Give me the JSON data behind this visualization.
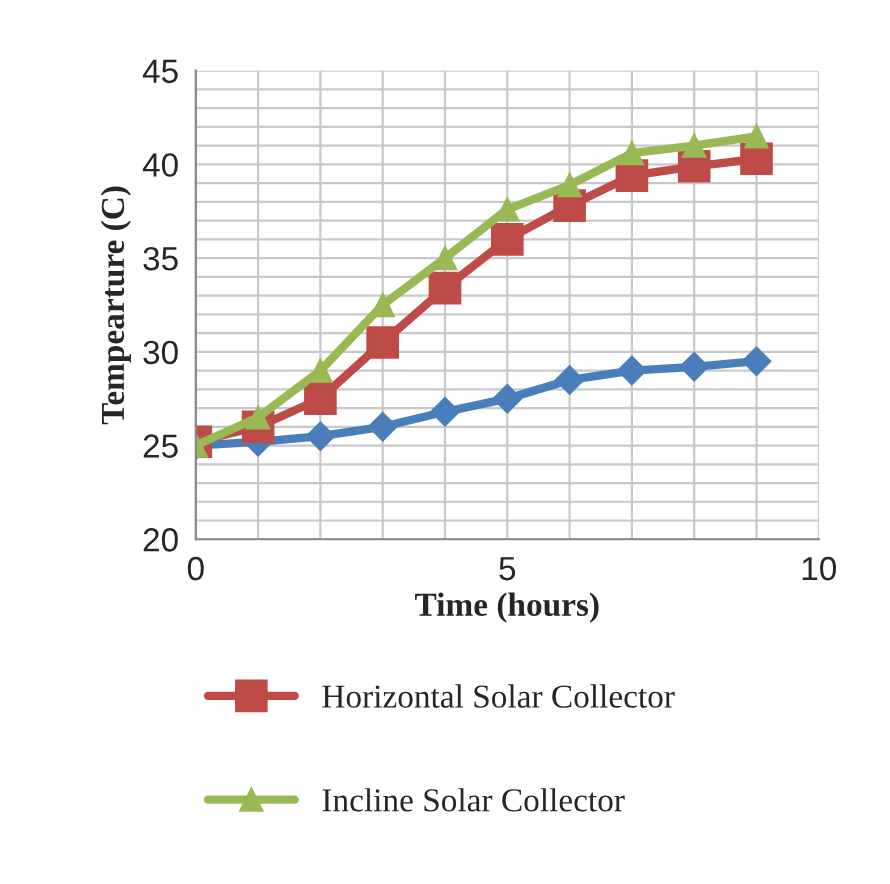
{
  "chart_data": {
    "type": "line",
    "xlabel": "Time (hours)",
    "ylabel": "Tempearture (C)",
    "x": [
      0,
      1,
      2,
      3,
      4,
      5,
      6,
      7,
      8,
      9
    ],
    "series": [
      {
        "color": "#4a7ebb",
        "marker": "diamond",
        "values": [
          25,
          25.2,
          25.5,
          26,
          26.8,
          27.5,
          28.5,
          29,
          29.2,
          29.5
        ]
      },
      {
        "name": "Horizontal Solar Collector",
        "color": "#be4b48",
        "marker": "square",
        "values": [
          25.2,
          26,
          27.5,
          30.5,
          33.4,
          36,
          37.8,
          39.4,
          39.9,
          40.3
        ]
      },
      {
        "name": "Incline Solar Collector",
        "color": "#98b954",
        "marker": "triangle",
        "values": [
          25,
          26.5,
          29,
          32.5,
          35,
          37.6,
          38.9,
          40.6,
          41,
          41.5
        ]
      }
    ],
    "xlim": [
      0,
      10
    ],
    "ylim": [
      20,
      45
    ],
    "xticks": [
      0,
      {
        "value": 1,
        "label": null
      },
      {
        "value": 2,
        "label": null
      },
      {
        "value": 3,
        "label": null
      },
      {
        "value": 4,
        "label": null
      },
      5,
      {
        "value": 6,
        "label": null
      },
      {
        "value": 7,
        "label": null
      },
      {
        "value": 8,
        "label": null
      },
      {
        "value": 9,
        "label": null
      },
      10
    ],
    "yticks": [
      20,
      {
        "value": 21,
        "label": null
      },
      {
        "value": 22,
        "label": null
      },
      {
        "value": 23,
        "label": null
      },
      {
        "value": 24,
        "label": null
      },
      25,
      {
        "value": 26,
        "label": null
      },
      {
        "value": 27,
        "label": null
      },
      {
        "value": 28,
        "label": null
      },
      {
        "value": 29,
        "label": null
      },
      30,
      {
        "value": 31,
        "label": null
      },
      {
        "value": 32,
        "label": null
      },
      {
        "value": 33,
        "label": null
      },
      {
        "value": 34,
        "label": null
      },
      35,
      {
        "value": 36,
        "label": null
      },
      {
        "value": 37,
        "label": null
      },
      {
        "value": 38,
        "label": null
      },
      {
        "value": 39,
        "label": null
      },
      40,
      {
        "value": 41,
        "label": null
      },
      {
        "value": 42,
        "label": null
      },
      {
        "value": 43,
        "label": null
      },
      {
        "value": 44,
        "label": null
      },
      45
    ],
    "grid": true,
    "legend": "bottom",
    "line_style": "solid"
  }
}
